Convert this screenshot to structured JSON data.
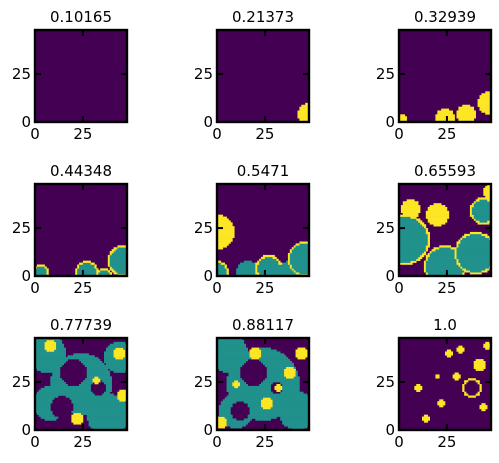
{
  "chart_data": {
    "type": "heatmap",
    "colormap": "viridis",
    "value_colors": {
      "0": "#440154",
      "1": "#21918c",
      "2": "#fde725"
    },
    "value_meaning": {
      "0": "background",
      "1": "region",
      "2": "active front"
    },
    "grid_size": [
      48,
      48
    ],
    "xlim": [
      0,
      48
    ],
    "ylim": [
      0,
      48
    ],
    "xticks": [
      "0",
      "25"
    ],
    "yticks": [
      "0",
      "25"
    ],
    "ticks_inward": true,
    "panels": [
      {
        "title": "0.10165",
        "blobs": []
      },
      {
        "title": "0.21373",
        "blobs": [
          {
            "cx": 48,
            "cy": 4,
            "r": 6,
            "v": 2
          }
        ]
      },
      {
        "title": "0.32939",
        "blobs": [
          {
            "cx": 1,
            "cy": 1,
            "r": 3,
            "v": 2
          },
          {
            "cx": 24,
            "cy": 2,
            "r": 5,
            "v": 2
          },
          {
            "cx": 35,
            "cy": 4,
            "r": 5,
            "v": 2
          },
          {
            "cx": 47,
            "cy": 10,
            "r": 6,
            "v": 2
          }
        ]
      },
      {
        "title": "0.44348",
        "blobs": [
          {
            "cx": 3,
            "cy": 2,
            "r": 4,
            "v": 2
          },
          {
            "cx": 3,
            "cy": 2,
            "r": 3,
            "v": 1
          },
          {
            "cx": 27,
            "cy": 2,
            "r": 6,
            "v": 2
          },
          {
            "cx": 27,
            "cy": 2,
            "r": 5,
            "v": 1
          },
          {
            "cx": 36,
            "cy": 0,
            "r": 4,
            "v": 2
          },
          {
            "cx": 36,
            "cy": 0,
            "r": 3,
            "v": 1
          },
          {
            "cx": 46,
            "cy": 8,
            "r": 8,
            "v": 2
          },
          {
            "cx": 46,
            "cy": 8,
            "r": 7,
            "v": 1
          }
        ]
      },
      {
        "title": "0.5471",
        "blobs": [
          {
            "cx": 0,
            "cy": 23,
            "r": 9,
            "v": 2
          },
          {
            "cx": 0,
            "cy": 2,
            "r": 6,
            "v": 2
          },
          {
            "cx": 0,
            "cy": 2,
            "r": 5,
            "v": 1
          },
          {
            "cx": 16,
            "cy": 2,
            "r": 6,
            "v": 1
          },
          {
            "cx": 27,
            "cy": 4,
            "r": 7,
            "v": 2
          },
          {
            "cx": 27,
            "cy": 4,
            "r": 6,
            "v": 1
          },
          {
            "cx": 38,
            "cy": 2,
            "r": 6,
            "v": 1
          },
          {
            "cx": 46,
            "cy": 9,
            "r": 9,
            "v": 2
          },
          {
            "cx": 46,
            "cy": 9,
            "r": 8,
            "v": 1
          }
        ]
      },
      {
        "title": "0.65593",
        "blobs": [
          {
            "cx": 20,
            "cy": 32,
            "r": 6,
            "v": 2
          },
          {
            "cx": 6,
            "cy": 35,
            "r": 5,
            "v": 2
          },
          {
            "cx": 44,
            "cy": 34,
            "r": 7,
            "v": 2
          },
          {
            "cx": 44,
            "cy": 34,
            "r": 6,
            "v": 1
          },
          {
            "cx": 3,
            "cy": 19,
            "r": 13,
            "v": 2
          },
          {
            "cx": 3,
            "cy": 19,
            "r": 12,
            "v": 1
          },
          {
            "cx": 24,
            "cy": 5,
            "r": 11,
            "v": 2
          },
          {
            "cx": 24,
            "cy": 5,
            "r": 10,
            "v": 1
          },
          {
            "cx": 40,
            "cy": 12,
            "r": 11,
            "v": 2
          },
          {
            "cx": 40,
            "cy": 12,
            "r": 10,
            "v": 1
          },
          {
            "cx": 48,
            "cy": 44,
            "r": 4,
            "v": 2
          }
        ]
      },
      {
        "title": "0.77739",
        "blobs": [
          {
            "cx": 24,
            "cy": 24,
            "r": 16,
            "v": 1
          },
          {
            "cx": 8,
            "cy": 14,
            "r": 9,
            "v": 1
          },
          {
            "cx": 38,
            "cy": 8,
            "r": 11,
            "v": 1
          },
          {
            "cx": 6,
            "cy": 40,
            "r": 10,
            "v": 1
          },
          {
            "cx": 44,
            "cy": 38,
            "r": 8,
            "v": 1
          },
          {
            "cx": 20,
            "cy": 30,
            "r": 7,
            "v": 0
          },
          {
            "cx": 33,
            "cy": 22,
            "r": 4,
            "v": 0
          },
          {
            "cx": 8,
            "cy": 44,
            "r": 3,
            "v": 2
          },
          {
            "cx": 44,
            "cy": 40,
            "r": 3,
            "v": 2
          },
          {
            "cx": 32,
            "cy": 26,
            "r": 2,
            "v": 2
          },
          {
            "cx": 22,
            "cy": 6,
            "r": 3,
            "v": 2
          },
          {
            "cx": 46,
            "cy": 18,
            "r": 3,
            "v": 2
          },
          {
            "cx": 14,
            "cy": 12,
            "r": 6,
            "v": 0
          }
        ]
      },
      {
        "title": "0.88117",
        "blobs": [
          {
            "cx": 24,
            "cy": 24,
            "r": 19,
            "v": 1
          },
          {
            "cx": 6,
            "cy": 40,
            "r": 10,
            "v": 1
          },
          {
            "cx": 42,
            "cy": 10,
            "r": 10,
            "v": 1
          },
          {
            "cx": 10,
            "cy": 10,
            "r": 9,
            "v": 1
          },
          {
            "cx": 19,
            "cy": 30,
            "r": 7,
            "v": 0
          },
          {
            "cx": 31,
            "cy": 22,
            "r": 3,
            "v": 0
          },
          {
            "cx": 32,
            "cy": 22,
            "r": 2,
            "v": 2
          },
          {
            "cx": 20,
            "cy": 40,
            "r": 3,
            "v": 2
          },
          {
            "cx": 44,
            "cy": 40,
            "r": 3,
            "v": 2
          },
          {
            "cx": 26,
            "cy": 14,
            "r": 3,
            "v": 2
          },
          {
            "cx": 10,
            "cy": 24,
            "r": 2,
            "v": 2
          },
          {
            "cx": 38,
            "cy": 30,
            "r": 3,
            "v": 2
          },
          {
            "cx": 12,
            "cy": 10,
            "r": 5,
            "v": 0
          },
          {
            "cx": 2,
            "cy": 4,
            "r": 3,
            "v": 2
          }
        ]
      },
      {
        "title": "1.0",
        "blobs": [
          {
            "cx": 38,
            "cy": 22,
            "r": 5,
            "v": 2
          },
          {
            "cx": 38,
            "cy": 22,
            "r": 4,
            "v": 0
          },
          {
            "cx": 42,
            "cy": 34,
            "r": 3,
            "v": 2
          },
          {
            "cx": 26,
            "cy": 40,
            "r": 2,
            "v": 2
          },
          {
            "cx": 32,
            "cy": 42,
            "r": 2,
            "v": 2
          },
          {
            "cx": 22,
            "cy": 14,
            "r": 2,
            "v": 2
          },
          {
            "cx": 44,
            "cy": 12,
            "r": 2,
            "v": 2
          },
          {
            "cx": 14,
            "cy": 6,
            "r": 2,
            "v": 2
          },
          {
            "cx": 10,
            "cy": 22,
            "r": 2,
            "v": 2
          },
          {
            "cx": 30,
            "cy": 28,
            "r": 2,
            "v": 2
          },
          {
            "cx": 46,
            "cy": 44,
            "r": 2,
            "v": 2
          },
          {
            "cx": 20,
            "cy": 28,
            "r": 1,
            "v": 2
          }
        ]
      }
    ]
  }
}
